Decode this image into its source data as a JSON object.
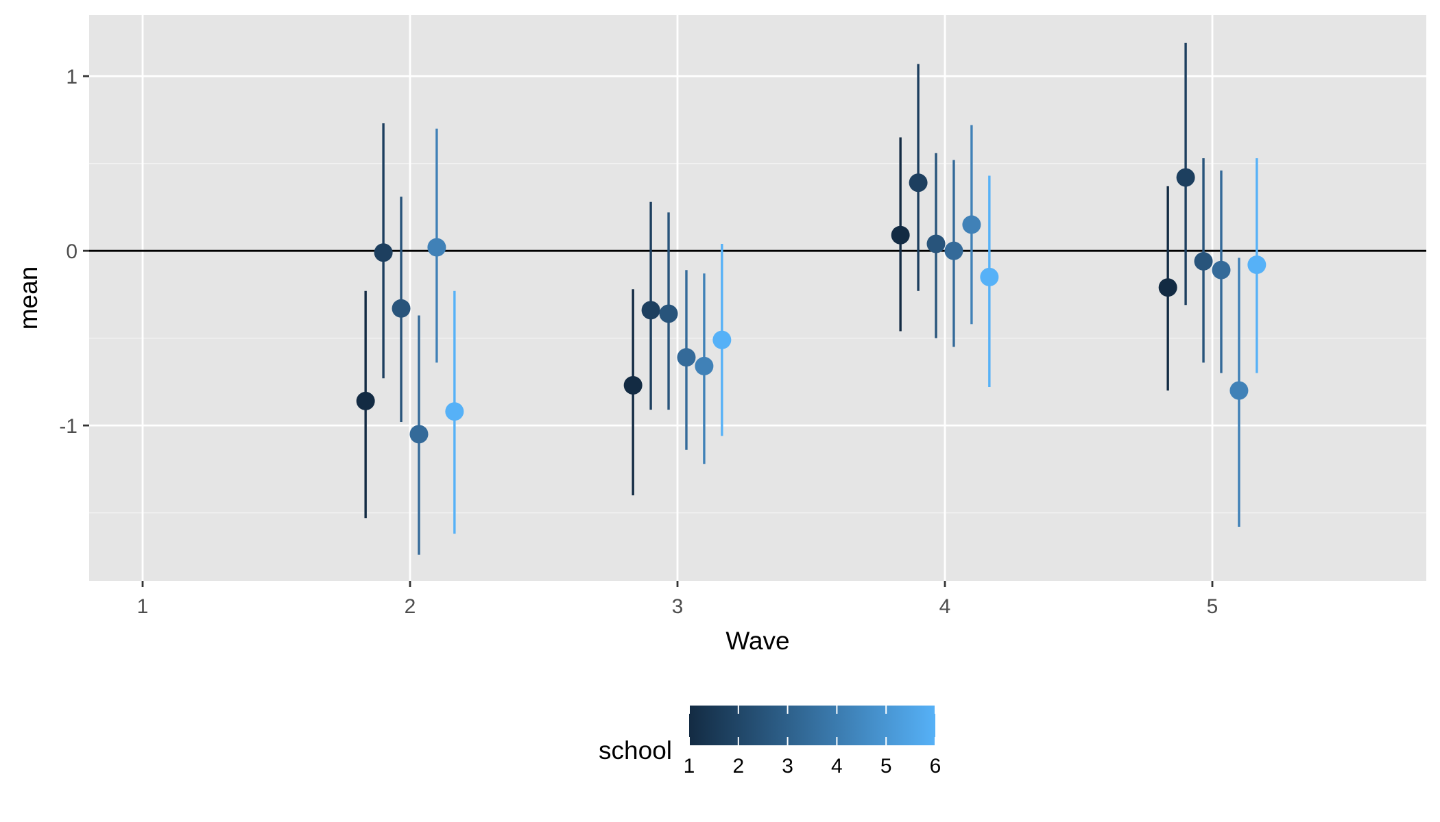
{
  "chart_data": {
    "type": "scatter",
    "subtype": "pointrange",
    "xlabel": "Wave",
    "ylabel": "mean",
    "xlim": [
      0.8,
      5.8
    ],
    "ylim": [
      -1.89,
      1.35
    ],
    "x_ticks": [
      1,
      2,
      3,
      4,
      5
    ],
    "x_tick_labels": [
      "1",
      "2",
      "3",
      "4",
      "5"
    ],
    "y_ticks": [
      -1,
      0,
      1
    ],
    "y_tick_labels": [
      "-1",
      "0",
      "1"
    ],
    "y_minor_ticks": [
      -1.5,
      -0.5,
      0.5
    ],
    "hline": 0,
    "grid": true,
    "dodge_width": 0.0665,
    "legend": {
      "title": "school",
      "position": "bottom",
      "type": "colorbar",
      "range": [
        1,
        6
      ],
      "ticks": [
        1,
        2,
        3,
        4,
        5,
        6
      ],
      "tick_labels": [
        "1",
        "2",
        "3",
        "4",
        "5",
        "6"
      ],
      "low_color": "#132B43",
      "high_color": "#56B1F7"
    },
    "series": [
      {
        "school": 1,
        "color": "#132B43",
        "points": [
          {
            "wave": 2,
            "mean": -0.86,
            "lower": -1.53,
            "upper": -0.23
          },
          {
            "wave": 3,
            "mean": -0.77,
            "lower": -1.4,
            "upper": -0.22
          },
          {
            "wave": 4,
            "mean": 0.09,
            "lower": -0.46,
            "upper": 0.65
          },
          {
            "wave": 5,
            "mean": -0.21,
            "lower": -0.8,
            "upper": 0.37
          }
        ]
      },
      {
        "school": 2,
        "color": "#1D3F5F",
        "points": [
          {
            "wave": 2,
            "mean": -0.01,
            "lower": -0.73,
            "upper": 0.73
          },
          {
            "wave": 3,
            "mean": -0.34,
            "lower": -0.91,
            "upper": 0.28
          },
          {
            "wave": 4,
            "mean": 0.39,
            "lower": -0.23,
            "upper": 1.07
          },
          {
            "wave": 5,
            "mean": 0.42,
            "lower": -0.31,
            "upper": 1.19
          }
        ]
      },
      {
        "school": 3,
        "color": "#28547B",
        "points": [
          {
            "wave": 2,
            "mean": -0.33,
            "lower": -0.98,
            "upper": 0.31
          },
          {
            "wave": 3,
            "mean": -0.36,
            "lower": -0.91,
            "upper": 0.22
          },
          {
            "wave": 4,
            "mean": 0.04,
            "lower": -0.5,
            "upper": 0.56
          },
          {
            "wave": 5,
            "mean": -0.06,
            "lower": -0.64,
            "upper": 0.53
          }
        ]
      },
      {
        "school": 4,
        "color": "#346A99",
        "points": [
          {
            "wave": 2,
            "mean": -1.05,
            "lower": -1.74,
            "upper": -0.37
          },
          {
            "wave": 3,
            "mean": -0.61,
            "lower": -1.14,
            "upper": -0.11
          },
          {
            "wave": 4,
            "mean": 0.0,
            "lower": -0.55,
            "upper": 0.52
          },
          {
            "wave": 5,
            "mean": -0.11,
            "lower": -0.7,
            "upper": 0.46
          }
        ]
      },
      {
        "school": 5,
        "color": "#4081B7",
        "points": [
          {
            "wave": 2,
            "mean": 0.02,
            "lower": -0.64,
            "upper": 0.7
          },
          {
            "wave": 3,
            "mean": -0.66,
            "lower": -1.22,
            "upper": -0.13
          },
          {
            "wave": 4,
            "mean": 0.15,
            "lower": -0.42,
            "upper": 0.72
          },
          {
            "wave": 5,
            "mean": -0.8,
            "lower": -1.58,
            "upper": -0.04
          }
        ]
      },
      {
        "school": 6,
        "color": "#56B1F7",
        "points": [
          {
            "wave": 2,
            "mean": -0.92,
            "lower": -1.62,
            "upper": -0.23
          },
          {
            "wave": 3,
            "mean": -0.51,
            "lower": -1.06,
            "upper": 0.04
          },
          {
            "wave": 4,
            "mean": -0.15,
            "lower": -0.78,
            "upper": 0.43
          },
          {
            "wave": 5,
            "mean": -0.08,
            "lower": -0.7,
            "upper": 0.53
          }
        ]
      }
    ]
  }
}
